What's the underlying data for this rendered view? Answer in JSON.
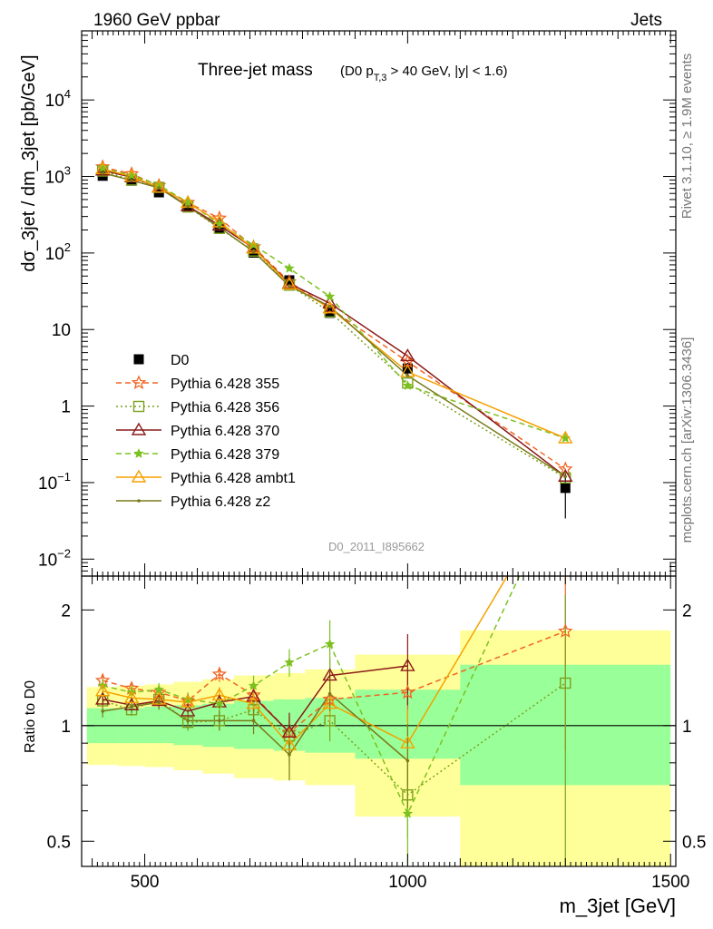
{
  "header": {
    "left": "1960 GeV ppbar",
    "right": "Jets"
  },
  "side_texts": {
    "upper": "Rivet 3.1.10, ≥ 1.9M events",
    "lower": "mcplots.cern.ch [arXiv:1306.3436]"
  },
  "watermark": "D0_2011_I895662",
  "chart_data": [
    {
      "type": "line",
      "title": "Three-jet mass",
      "subtitle": "(D0 p_T,3 > 40 GeV, |y| < 1.6)",
      "ylabel": "dσ_3jet / dm_3jet [pb/GeV]",
      "xlim": [
        380,
        1510
      ],
      "ylim": [
        0.006,
        80000
      ],
      "yscale": "log",
      "x_ticks": [
        "500",
        "1000",
        "1500"
      ],
      "y_ticks": [
        "10^-2",
        "10^-1",
        "1",
        "10",
        "10^2",
        "10^3",
        "10^4"
      ],
      "legend_position": "middle-left",
      "x": [
        420,
        475,
        527,
        582,
        642,
        707,
        775,
        852,
        1000,
        1300
      ],
      "series": [
        {
          "name": "D0",
          "color": "#000000",
          "marker": "square",
          "line": "none",
          "values": [
            1020,
            880,
            620,
            395,
            210,
            101,
            44,
            16.5,
            3.1,
            0.085
          ],
          "err": [
            0.04,
            0.04,
            0.04,
            0.04,
            0.05,
            0.06,
            0.08,
            0.1,
            0.18,
            0.6
          ]
        },
        {
          "name": "Pythia 6.428 355",
          "color": "#f26422",
          "marker": "star-open",
          "line": "dashed",
          "values": [
            1330,
            1080,
            760,
            455,
            285,
            120,
            42,
            19,
            3.8,
            0.15
          ]
        },
        {
          "name": "Pythia 6.428 356",
          "color": "#7ca11f",
          "marker": "square-open",
          "line": "dotted",
          "values": [
            1180,
            900,
            720,
            400,
            210,
            106,
            38,
            17,
            2.0,
            0.115
          ]
        },
        {
          "name": "Pythia 6.428 370",
          "color": "#8b1a1a",
          "marker": "triangle-open",
          "line": "solid",
          "values": [
            1200,
            980,
            720,
            410,
            230,
            116,
            40,
            22,
            4.5,
            0.12
          ]
        },
        {
          "name": "Pythia 6.428 379",
          "color": "#7cc11f",
          "marker": "star-filled",
          "line": "dashed",
          "values": [
            1290,
            1030,
            770,
            460,
            240,
            127,
            63,
            27,
            1.85,
            0.38
          ]
        },
        {
          "name": "Pythia 6.428 ambt1",
          "color": "#f5a000",
          "marker": "triangle-open",
          "line": "solid",
          "values": [
            1250,
            1000,
            720,
            455,
            253,
            115,
            39,
            19,
            2.8,
            0.38
          ]
        },
        {
          "name": "Pythia 6.428 z2",
          "color": "#7a7a1a",
          "marker": "dot",
          "line": "solid",
          "values": [
            1110,
            890,
            710,
            405,
            216,
            104,
            37,
            20,
            2.5,
            0.12
          ]
        }
      ]
    },
    {
      "type": "line",
      "ylabel": "Ratio to D0",
      "xlabel": "m_3jet [GeV]",
      "xlim": [
        380,
        1510
      ],
      "ylim": [
        0.43,
        2.45
      ],
      "yscale": "log",
      "y_ticks": [
        "0.5",
        "1",
        "2"
      ],
      "x_ticks": [
        "500",
        "1000",
        "1500"
      ],
      "reference_line": 1,
      "bin_edges": [
        390,
        450,
        500,
        555,
        610,
        670,
        745,
        805,
        900,
        1100,
        1500
      ],
      "bands": [
        {
          "name": "stat",
          "color": "#99ff99",
          "low": [
            0.9,
            0.9,
            0.9,
            0.89,
            0.88,
            0.87,
            0.86,
            0.85,
            0.82,
            0.7
          ],
          "high": [
            1.11,
            1.11,
            1.12,
            1.13,
            1.14,
            1.16,
            1.17,
            1.18,
            1.24,
            1.44
          ]
        },
        {
          "name": "total",
          "color": "#ffff99",
          "low": [
            0.79,
            0.785,
            0.78,
            0.765,
            0.75,
            0.73,
            0.72,
            0.7,
            0.58,
            0.4
          ],
          "high": [
            1.26,
            1.27,
            1.28,
            1.3,
            1.32,
            1.35,
            1.37,
            1.4,
            1.53,
            1.77
          ]
        },
        {
          "name": "total-right",
          "color": "#ffff99",
          "low": [
            0.4
          ],
          "high": [
            1.77
          ]
        }
      ],
      "x": [
        420,
        475,
        527,
        582,
        642,
        707,
        775,
        852,
        1000,
        1300
      ],
      "series": [
        {
          "name": "Pythia 6.428 355",
          "color": "#f26422",
          "marker": "star-open",
          "line": "dashed",
          "values": [
            1.31,
            1.25,
            1.22,
            1.16,
            1.36,
            1.2,
            0.96,
            1.17,
            1.22,
            1.76
          ],
          "err": [
            0.04,
            0.04,
            0.05,
            0.05,
            0.06,
            0.08,
            0.1,
            0.12,
            0.2,
            0.9
          ]
        },
        {
          "name": "Pythia 6.428 356",
          "color": "#7ca11f",
          "marker": "square-open",
          "line": "dotted",
          "values": [
            1.16,
            1.1,
            1.17,
            1.02,
            1.03,
            1.1,
            0.94,
            1.03,
            0.66,
            1.29
          ],
          "err": [
            0.04,
            0.04,
            0.05,
            0.05,
            0.06,
            0.08,
            0.1,
            0.12,
            0.15,
            0.9
          ]
        },
        {
          "name": "Pythia 6.428 370",
          "color": "#8b1a1a",
          "marker": "triangle-open",
          "line": "solid",
          "values": [
            1.17,
            1.13,
            1.16,
            1.09,
            1.15,
            1.19,
            0.96,
            1.35,
            1.43,
            null
          ],
          "err": [
            0.04,
            0.04,
            0.05,
            0.05,
            0.06,
            0.08,
            0.12,
            0.15,
            0.3,
            null
          ]
        },
        {
          "name": "Pythia 6.428 379",
          "color": "#7cc11f",
          "marker": "star-filled",
          "line": "dashed",
          "values": [
            1.27,
            1.22,
            1.24,
            1.17,
            1.14,
            1.27,
            1.46,
            1.63,
            0.59,
            4.4
          ],
          "err": [
            0.05,
            0.05,
            0.05,
            0.05,
            0.06,
            0.08,
            0.12,
            0.25,
            0.2,
            2.0
          ]
        },
        {
          "name": "Pythia 6.428 ambt1",
          "color": "#f5a000",
          "marker": "triangle-open",
          "line": "solid",
          "values": [
            1.23,
            1.18,
            1.17,
            1.15,
            1.2,
            1.14,
            0.89,
            1.14,
            0.9,
            4.4
          ],
          "err": [
            0.04,
            0.04,
            0.05,
            0.05,
            0.06,
            0.08,
            0.1,
            0.12,
            0.2,
            2.0
          ]
        },
        {
          "name": "Pythia 6.428 z2",
          "color": "#7a7a1a",
          "marker": "dot",
          "line": "solid",
          "values": [
            1.09,
            1.12,
            1.15,
            1.03,
            1.03,
            1.03,
            0.84,
            1.21,
            0.81,
            null
          ],
          "err": [
            0.04,
            0.04,
            0.05,
            0.05,
            0.06,
            0.08,
            0.12,
            0.12,
            0.2,
            null
          ]
        }
      ]
    }
  ]
}
